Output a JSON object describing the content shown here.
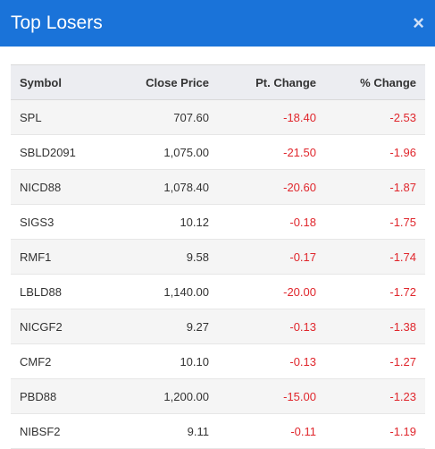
{
  "modal": {
    "title": "Top Losers",
    "close_icon": "×"
  },
  "table": {
    "headers": {
      "symbol": "Symbol",
      "close_price": "Close Price",
      "pt_change": "Pt. Change",
      "pct_change": "% Change"
    },
    "rows": [
      {
        "symbol": "SPL",
        "close_price": "707.60",
        "pt_change": "-18.40",
        "pct_change": "-2.53"
      },
      {
        "symbol": "SBLD2091",
        "close_price": "1,075.00",
        "pt_change": "-21.50",
        "pct_change": "-1.96"
      },
      {
        "symbol": "NICD88",
        "close_price": "1,078.40",
        "pt_change": "-20.60",
        "pct_change": "-1.87"
      },
      {
        "symbol": "SIGS3",
        "close_price": "10.12",
        "pt_change": "-0.18",
        "pct_change": "-1.75"
      },
      {
        "symbol": "RMF1",
        "close_price": "9.58",
        "pt_change": "-0.17",
        "pct_change": "-1.74"
      },
      {
        "symbol": "LBLD88",
        "close_price": "1,140.00",
        "pt_change": "-20.00",
        "pct_change": "-1.72"
      },
      {
        "symbol": "NICGF2",
        "close_price": "9.27",
        "pt_change": "-0.13",
        "pct_change": "-1.38"
      },
      {
        "symbol": "CMF2",
        "close_price": "10.10",
        "pt_change": "-0.13",
        "pct_change": "-1.27"
      },
      {
        "symbol": "PBD88",
        "close_price": "1,200.00",
        "pt_change": "-15.00",
        "pct_change": "-1.23"
      },
      {
        "symbol": "NIBSF2",
        "close_price": "9.11",
        "pt_change": "-0.11",
        "pct_change": "-1.19"
      }
    ]
  },
  "colors": {
    "header_bg": "#1a73d9",
    "negative": "#e0262c"
  }
}
